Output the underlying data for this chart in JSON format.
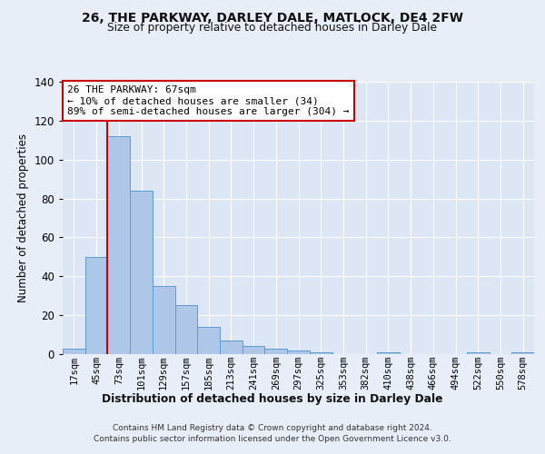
{
  "title_line1": "26, THE PARKWAY, DARLEY DALE, MATLOCK, DE4 2FW",
  "title_line2": "Size of property relative to detached houses in Darley Dale",
  "xlabel": "Distribution of detached houses by size in Darley Dale",
  "ylabel": "Number of detached properties",
  "bin_labels": [
    "17sqm",
    "45sqm",
    "73sqm",
    "101sqm",
    "129sqm",
    "157sqm",
    "185sqm",
    "213sqm",
    "241sqm",
    "269sqm",
    "297sqm",
    "325sqm",
    "353sqm",
    "382sqm",
    "410sqm",
    "438sqm",
    "466sqm",
    "494sqm",
    "522sqm",
    "550sqm",
    "578sqm"
  ],
  "bar_values": [
    3,
    50,
    112,
    84,
    35,
    25,
    14,
    7,
    4,
    3,
    2,
    1,
    0,
    0,
    1,
    0,
    0,
    0,
    1,
    0,
    1
  ],
  "bar_color": "#aec6e8",
  "bar_edge_color": "#5b9bd5",
  "annotation_line1": "26 THE PARKWAY: 67sqm",
  "annotation_line2": "← 10% of detached houses are smaller (34)",
  "annotation_line3": "89% of semi-detached houses are larger (304) →",
  "vline_x": 1.5,
  "vline_color": "#cc0000",
  "annotation_box_color": "#ffffff",
  "annotation_box_edge": "#cc0000",
  "background_color": "#e8eef7",
  "plot_bg_color": "#dce6f5",
  "ylim": [
    0,
    140
  ],
  "yticks": [
    0,
    20,
    40,
    60,
    80,
    100,
    120,
    140
  ],
  "footer_line1": "Contains HM Land Registry data © Crown copyright and database right 2024.",
  "footer_line2": "Contains public sector information licensed under the Open Government Licence v3.0."
}
